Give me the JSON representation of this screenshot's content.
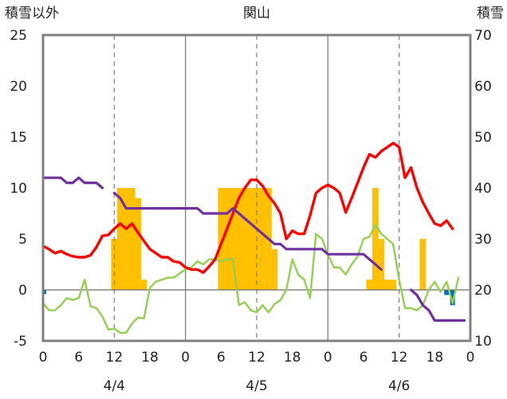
{
  "chart_data": {
    "type": "line",
    "title": "関山",
    "ylabel_left": "積雪以外",
    "ylabel_right": "積雪",
    "ylim_left": [
      -5,
      25
    ],
    "ylim_right": [
      10,
      70
    ],
    "yticks_left": [
      -5,
      0,
      5,
      10,
      15,
      20,
      25
    ],
    "yticks_right": [
      10,
      20,
      30,
      40,
      50,
      60,
      70
    ],
    "xlim_hours": [
      0,
      72
    ],
    "xtick_labels": [
      "0",
      "6",
      "12",
      "18",
      "0",
      "6",
      "12",
      "18",
      "0",
      "6",
      "12",
      "18",
      "0"
    ],
    "date_labels": [
      {
        "label": "4/4",
        "hour": 12
      },
      {
        "label": "4/5",
        "hour": 36
      },
      {
        "label": "4/6",
        "hour": 60
      }
    ],
    "grid": "vertical lines at 0:00 (solid) and 12:00 (dashed)",
    "colors": {
      "temperature": "#ff0000",
      "humidity_like": "#92d050",
      "precipitation": "#ffc000",
      "snow_depth": "#7030a0",
      "small_bar": "#0070c0",
      "frame": "#808080",
      "grid": "#808080"
    },
    "bars_precip": [
      {
        "x": 12,
        "y": 5
      },
      {
        "x": 13,
        "y": 10
      },
      {
        "x": 14,
        "y": 10
      },
      {
        "x": 15,
        "y": 10
      },
      {
        "x": 16,
        "y": 9
      },
      {
        "x": 17,
        "y": 1
      },
      {
        "x": 30,
        "y": 10
      },
      {
        "x": 31,
        "y": 10
      },
      {
        "x": 32,
        "y": 10
      },
      {
        "x": 33,
        "y": 10
      },
      {
        "x": 34,
        "y": 10
      },
      {
        "x": 35,
        "y": 10
      },
      {
        "x": 36,
        "y": 10
      },
      {
        "x": 37,
        "y": 10
      },
      {
        "x": 38,
        "y": 10
      },
      {
        "x": 39,
        "y": 4
      },
      {
        "x": 55,
        "y": 1
      },
      {
        "x": 56,
        "y": 10
      },
      {
        "x": 57,
        "y": 5
      },
      {
        "x": 58,
        "y": 1
      },
      {
        "x": 59,
        "y": 1
      },
      {
        "x": 64,
        "y": 5
      }
    ],
    "bars_small": [
      {
        "x": 0,
        "y": -0.4
      },
      {
        "x": 68,
        "y": -0.5
      },
      {
        "x": 69,
        "y": -1.5
      }
    ],
    "series": [
      {
        "key": "temperature",
        "axis": "left",
        "points": [
          [
            0,
            4.3
          ],
          [
            1,
            4
          ],
          [
            2,
            3.6
          ],
          [
            3,
            3.8
          ],
          [
            4,
            3.5
          ],
          [
            5,
            3.3
          ],
          [
            6,
            3.2
          ],
          [
            7,
            3.2
          ],
          [
            8,
            3.4
          ],
          [
            9,
            4.2
          ],
          [
            10,
            5.3
          ],
          [
            11,
            5.4
          ],
          [
            12,
            6
          ],
          [
            13,
            6.5
          ],
          [
            14,
            6
          ],
          [
            15,
            6.5
          ],
          [
            16,
            5.6
          ],
          [
            17,
            4.8
          ],
          [
            18,
            4
          ],
          [
            19,
            3.6
          ],
          [
            20,
            3.2
          ],
          [
            21,
            3.2
          ],
          [
            22,
            2.8
          ],
          [
            23,
            2.7
          ],
          [
            24,
            2.2
          ],
          [
            25,
            2
          ],
          [
            26,
            2
          ],
          [
            27,
            1.7
          ],
          [
            28,
            2.3
          ],
          [
            29,
            3
          ],
          [
            30,
            4.5
          ],
          [
            31,
            6
          ],
          [
            32,
            7.5
          ],
          [
            33,
            9
          ],
          [
            34,
            10
          ],
          [
            35,
            10.8
          ],
          [
            36,
            10.8
          ],
          [
            37,
            10.2
          ],
          [
            38,
            9.2
          ],
          [
            39,
            8.5
          ],
          [
            40,
            7.5
          ],
          [
            41,
            5
          ],
          [
            42,
            5.8
          ],
          [
            43,
            5.5
          ],
          [
            44,
            5.5
          ],
          [
            45,
            7.3
          ],
          [
            46,
            9.5
          ],
          [
            47,
            10
          ],
          [
            48,
            10.3
          ],
          [
            49,
            10
          ],
          [
            50,
            9.5
          ],
          [
            51,
            7.6
          ],
          [
            52,
            9
          ],
          [
            53,
            10.5
          ],
          [
            54,
            12
          ],
          [
            55,
            13.3
          ],
          [
            56,
            13
          ],
          [
            57,
            13.6
          ],
          [
            58,
            14
          ],
          [
            59,
            14.4
          ],
          [
            60,
            14
          ],
          [
            61,
            11
          ],
          [
            62,
            12
          ],
          [
            63,
            10
          ],
          [
            64,
            8.6
          ],
          [
            65,
            7.5
          ],
          [
            66,
            6.5
          ],
          [
            67,
            6.3
          ],
          [
            68,
            6.8
          ],
          [
            69,
            6
          ]
        ]
      },
      {
        "key": "humidity_like",
        "axis": "left",
        "points": [
          [
            0,
            -1.3
          ],
          [
            1,
            -2
          ],
          [
            2,
            -2
          ],
          [
            3,
            -1.5
          ],
          [
            4,
            -0.8
          ],
          [
            5,
            -1
          ],
          [
            6,
            -0.8
          ],
          [
            7,
            1
          ],
          [
            8,
            -1.6
          ],
          [
            9,
            -1.8
          ],
          [
            10,
            -2.6
          ],
          [
            11,
            -3.9
          ],
          [
            12,
            -3.8
          ],
          [
            13,
            -4.2
          ],
          [
            14,
            -4.2
          ],
          [
            15,
            -3.3
          ],
          [
            16,
            -2.7
          ],
          [
            17,
            -2.8
          ],
          [
            18,
            0.2
          ],
          [
            19,
            0.8
          ],
          [
            20,
            1
          ],
          [
            21,
            1.2
          ],
          [
            22,
            1.2
          ],
          [
            23,
            1.6
          ],
          [
            24,
            2
          ],
          [
            25,
            2.2
          ],
          [
            26,
            2.8
          ],
          [
            27,
            2.5
          ],
          [
            28,
            3
          ],
          [
            29,
            3
          ],
          [
            30,
            2.8
          ],
          [
            31,
            3
          ],
          [
            32,
            3
          ],
          [
            33,
            -1.5
          ],
          [
            34,
            -1.2
          ],
          [
            35,
            -2
          ],
          [
            36,
            -2.2
          ],
          [
            37,
            -1.5
          ],
          [
            38,
            -2.2
          ],
          [
            39,
            -1.4
          ],
          [
            40,
            -1
          ],
          [
            41,
            0
          ],
          [
            42,
            3
          ],
          [
            43,
            1.5
          ],
          [
            44,
            1
          ],
          [
            45,
            -0.8
          ],
          [
            46,
            5.5
          ],
          [
            47,
            5
          ],
          [
            48,
            3.5
          ],
          [
            49,
            2.2
          ],
          [
            50,
            2.2
          ],
          [
            51,
            1.5
          ],
          [
            52,
            2.5
          ],
          [
            53,
            3.3
          ],
          [
            54,
            5
          ],
          [
            55,
            5.2
          ],
          [
            56,
            6.4
          ],
          [
            57,
            5.5
          ],
          [
            58,
            5
          ],
          [
            59,
            4.5
          ],
          [
            60,
            1
          ],
          [
            61,
            -1.8
          ],
          [
            62,
            -1.8
          ],
          [
            63,
            -2
          ],
          [
            64,
            -1.5
          ],
          [
            65,
            0
          ],
          [
            66,
            0.8
          ],
          [
            67,
            -0.2
          ],
          [
            68,
            0.8
          ],
          [
            69,
            -1.3
          ],
          [
            70,
            1.2
          ]
        ]
      },
      {
        "key": "snow_depth",
        "axis": "right",
        "segments": [
          [
            [
              0,
              42
            ],
            [
              1,
              42
            ],
            [
              2,
              42
            ],
            [
              3,
              42
            ],
            [
              4,
              41
            ],
            [
              5,
              41
            ],
            [
              6,
              42
            ],
            [
              7,
              41
            ],
            [
              8,
              41
            ],
            [
              9,
              41
            ],
            [
              10,
              40
            ]
          ],
          [
            [
              12,
              39
            ],
            [
              13,
              38
            ],
            [
              14,
              36
            ],
            [
              15,
              36
            ],
            [
              16,
              36
            ],
            [
              17,
              36
            ],
            [
              18,
              36
            ],
            [
              19,
              36
            ],
            [
              20,
              36
            ],
            [
              21,
              36
            ],
            [
              22,
              36
            ],
            [
              23,
              36
            ],
            [
              24,
              36
            ],
            [
              25,
              36
            ],
            [
              26,
              36
            ],
            [
              27,
              35
            ],
            [
              28,
              35
            ],
            [
              29,
              35
            ],
            [
              30,
              35
            ],
            [
              31,
              35
            ],
            [
              32,
              36
            ],
            [
              33,
              35
            ],
            [
              34,
              34
            ],
            [
              35,
              33
            ],
            [
              36,
              32
            ],
            [
              37,
              31
            ],
            [
              38,
              30
            ],
            [
              39,
              29
            ],
            [
              40,
              29
            ],
            [
              41,
              28
            ],
            [
              42,
              28
            ],
            [
              43,
              28
            ],
            [
              44,
              28
            ],
            [
              45,
              28
            ],
            [
              46,
              28
            ],
            [
              47,
              28
            ],
            [
              48,
              27
            ],
            [
              49,
              27
            ],
            [
              50,
              27
            ],
            [
              51,
              27
            ],
            [
              52,
              27
            ],
            [
              53,
              27
            ],
            [
              54,
              27
            ],
            [
              55,
              26
            ],
            [
              56,
              25
            ],
            [
              57,
              24
            ]
          ],
          [
            [
              62,
              20
            ],
            [
              63,
              19
            ],
            [
              64,
              17
            ],
            [
              65,
              16
            ],
            [
              66,
              14
            ],
            [
              67,
              14
            ],
            [
              68,
              14
            ],
            [
              69,
              14
            ],
            [
              70,
              14
            ],
            [
              71,
              14
            ]
          ]
        ]
      }
    ]
  }
}
